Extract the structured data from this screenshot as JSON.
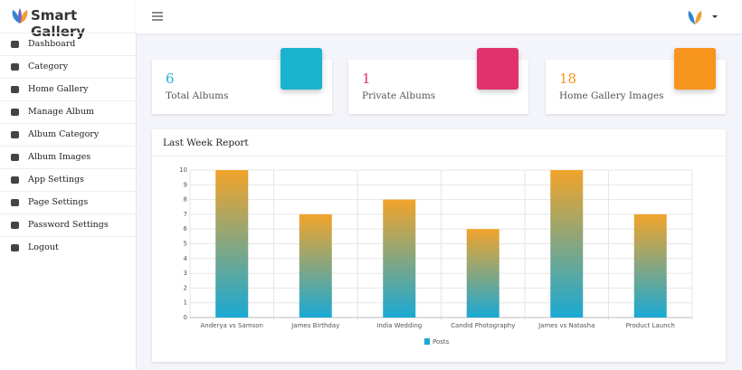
{
  "brand": "Smart Gallery",
  "sidebar": {
    "items": [
      "Dashboard",
      "Category",
      "Home Gallery",
      "Manage Album",
      "Album Category",
      "Album Images",
      "App Settings",
      "Page Settings",
      "Password Settings",
      "Logout"
    ]
  },
  "stats": [
    {
      "value": 6,
      "label": "Total Albums"
    },
    {
      "value": 1,
      "label": "Private Albums"
    },
    {
      "value": 18,
      "label": "Home Gallery Images"
    }
  ],
  "report": {
    "title": "Last Week Report"
  },
  "chart_data": {
    "type": "bar",
    "categories": [
      "Anderya vs Samson",
      "James Birthday",
      "India Wedding",
      "Candid Photography",
      "James vs Natasha",
      "Product Launch"
    ],
    "series": [
      {
        "name": "Posts",
        "color": "#1aa9d4",
        "gradient_top": "#f2a42b",
        "values": [
          10,
          7,
          8,
          6,
          10,
          7
        ]
      }
    ],
    "ylim": [
      0,
      10
    ],
    "yticks": [
      0,
      1,
      2,
      3,
      4,
      5,
      6,
      7,
      8,
      9,
      10
    ],
    "grid": true
  }
}
